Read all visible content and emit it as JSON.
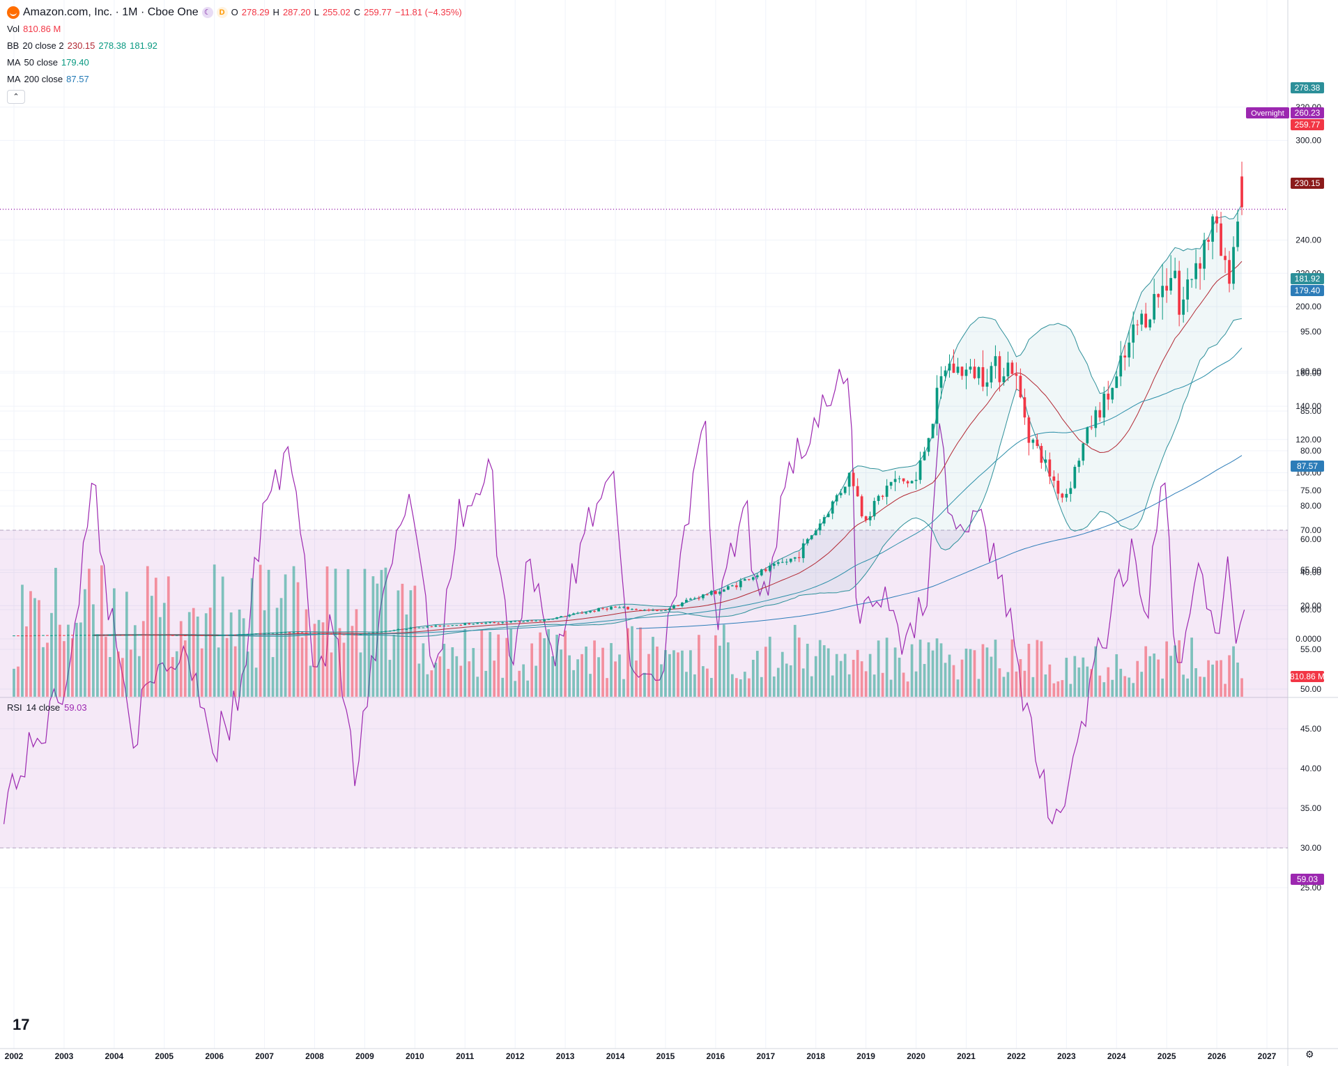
{
  "header": {
    "symbol": "Amazon.com, Inc. · 1M · Cboe One",
    "moon_icon": "moon-icon",
    "d_badge": "D",
    "open_label": "O",
    "open": "278.29",
    "high_label": "H",
    "high": "287.20",
    "low_label": "L",
    "low": "255.02",
    "close_label": "C",
    "close": "259.77",
    "change": "−11.81 (−4.35%)"
  },
  "indicators": {
    "vol": {
      "label": "Vol",
      "value": "810.86 M"
    },
    "bb": {
      "label": "BB",
      "params": "20 close 2",
      "basis": "230.15",
      "upper": "278.38",
      "lower": "181.92"
    },
    "ma50": {
      "label": "MA",
      "params": "50 close",
      "value": "179.40"
    },
    "ma200": {
      "label": "MA",
      "params": "200 close",
      "value": "87.57"
    },
    "collapse_glyph": "⌃"
  },
  "rsi": {
    "label": "RSI",
    "params": "14 close",
    "value": "59.03"
  },
  "price_labels": {
    "upper": "278.38",
    "overnight": "Overnight",
    "overnight_value": "260.23",
    "close": "259.77",
    "basis": "230.15",
    "lower": "181.92",
    "ma50": "179.40",
    "ma200": "87.57",
    "volume": "810.86 M",
    "rsi": "59.03"
  },
  "colors": {
    "up": "#089981",
    "down": "#f23645",
    "bb": "#2c8f99",
    "basis": "#b22833",
    "ma200": "#2c7cb8",
    "rsi": "#9c27b0"
  },
  "chart_data": {
    "type": "candlestick",
    "title": "Amazon.com, Inc. · 1M · Cboe One",
    "price_ticks": [
      "320.00",
      "300.00",
      "240.00",
      "220.00",
      "200.00",
      "160.00",
      "140.00",
      "120.00",
      "100.00",
      "80.00",
      "60.00",
      "40.00",
      "20.00",
      "0.0000"
    ],
    "rsi_ticks": [
      "95.00",
      "90.00",
      "85.00",
      "80.00",
      "75.00",
      "70.00",
      "65.00",
      "60.00",
      "55.00",
      "50.00",
      "45.00",
      "40.00",
      "35.00",
      "30.00",
      "25.00"
    ],
    "x_ticks": [
      "2002",
      "2003",
      "2004",
      "2005",
      "2006",
      "2007",
      "2008",
      "2009",
      "2010",
      "2011",
      "2012",
      "2013",
      "2014",
      "2015",
      "2016",
      "2017",
      "2018",
      "2019",
      "2020",
      "2021",
      "2022",
      "2023",
      "2024",
      "2025",
      "2026",
      "2027"
    ],
    "ylim": [
      0,
      320
    ],
    "rsi_band": [
      30,
      70
    ],
    "overnight_price": 260.23,
    "last_close": 259.77,
    "close_anchors": [
      [
        2002.0,
        2.0
      ],
      [
        2004.0,
        2.5
      ],
      [
        2006.0,
        2.0
      ],
      [
        2007.5,
        4.0
      ],
      [
        2008.8,
        2.5
      ],
      [
        2009.9,
        6.5
      ],
      [
        2011.0,
        9.0
      ],
      [
        2012.5,
        11.0
      ],
      [
        2013.9,
        19.0
      ],
      [
        2014.9,
        16.5
      ],
      [
        2015.5,
        24.0
      ],
      [
        2016.2,
        30.0
      ],
      [
        2016.9,
        40.0
      ],
      [
        2017.6,
        49.0
      ],
      [
        2018.2,
        75.0
      ],
      [
        2018.7,
        100.0
      ],
      [
        2018.95,
        72.0
      ],
      [
        2019.5,
        94.0
      ],
      [
        2020.0,
        95.0
      ],
      [
        2020.6,
        165.0
      ],
      [
        2021.0,
        160.0
      ],
      [
        2021.9,
        165.0
      ],
      [
        2022.3,
        120.0
      ],
      [
        2022.95,
        84.0
      ],
      [
        2023.5,
        130.0
      ],
      [
        2024.0,
        155.0
      ],
      [
        2024.4,
        188.0
      ],
      [
        2024.9,
        210.0
      ],
      [
        2025.15,
        230.0
      ],
      [
        2025.25,
        195.0
      ],
      [
        2025.6,
        230.0
      ],
      [
        2025.95,
        250.0
      ],
      [
        2026.2,
        215.0
      ],
      [
        2026.45,
        258.0
      ],
      [
        2026.55,
        259.77
      ]
    ],
    "rsi_anchors": [
      [
        2001.8,
        36
      ],
      [
        2002.5,
        44
      ],
      [
        2003.0,
        50
      ],
      [
        2003.6,
        76
      ],
      [
        2003.9,
        60
      ],
      [
        2004.4,
        45
      ],
      [
        2005.0,
        53
      ],
      [
        2005.5,
        55
      ],
      [
        2006.0,
        43
      ],
      [
        2006.5,
        48
      ],
      [
        2007.0,
        74
      ],
      [
        2007.6,
        80
      ],
      [
        2008.0,
        52
      ],
      [
        2008.4,
        58
      ],
      [
        2008.8,
        38
      ],
      [
        2009.3,
        58
      ],
      [
        2009.9,
        76
      ],
      [
        2010.4,
        52
      ],
      [
        2010.9,
        72
      ],
      [
        2011.5,
        78
      ],
      [
        2011.9,
        53
      ],
      [
        2012.3,
        67
      ],
      [
        2012.8,
        54
      ],
      [
        2013.4,
        70
      ],
      [
        2013.9,
        79
      ],
      [
        2014.3,
        53
      ],
      [
        2014.9,
        52
      ],
      [
        2015.3,
        68
      ],
      [
        2015.8,
        82
      ],
      [
        2016.0,
        58
      ],
      [
        2016.6,
        73
      ],
      [
        2016.9,
        58
      ],
      [
        2017.4,
        78
      ],
      [
        2017.9,
        82
      ],
      [
        2018.5,
        88
      ],
      [
        2018.7,
        90
      ],
      [
        2018.8,
        60
      ],
      [
        2019.3,
        62
      ],
      [
        2019.8,
        56
      ],
      [
        2020.2,
        62
      ],
      [
        2020.5,
        83
      ],
      [
        2020.7,
        71
      ],
      [
        2021.4,
        70
      ],
      [
        2021.9,
        60
      ],
      [
        2022.0,
        52
      ],
      [
        2022.5,
        38
      ],
      [
        2022.9,
        34
      ],
      [
        2023.4,
        48
      ],
      [
        2023.9,
        60
      ],
      [
        2024.3,
        66
      ],
      [
        2024.6,
        60
      ],
      [
        2024.95,
        76
      ],
      [
        2025.2,
        53
      ],
      [
        2025.6,
        65
      ],
      [
        2025.9,
        60
      ],
      [
        2026.0,
        53
      ],
      [
        2026.2,
        66
      ],
      [
        2026.35,
        56
      ],
      [
        2026.5,
        61
      ],
      [
        2026.55,
        59.03
      ]
    ]
  }
}
